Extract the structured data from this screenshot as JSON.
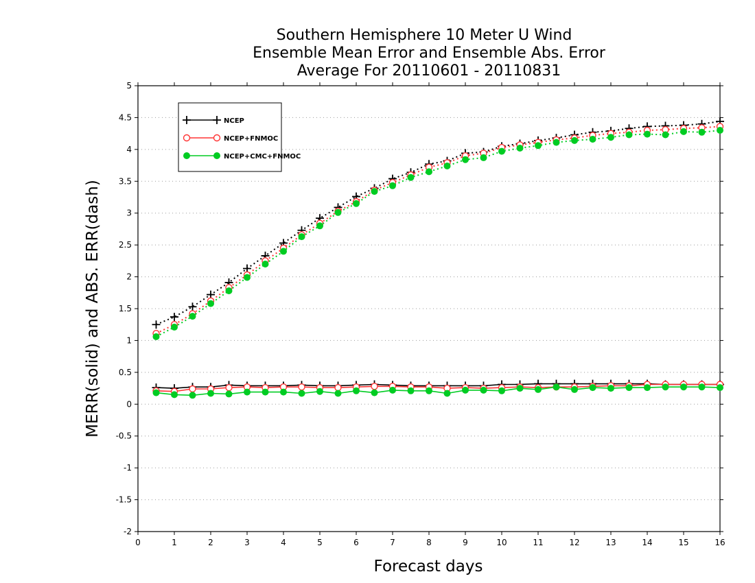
{
  "chart_data": {
    "type": "line",
    "title": [
      "Southern Hemisphere 10 Meter U Wind",
      "Ensemble Mean Error and Ensemble Abs. Error",
      "Average For 20110601 - 20110831"
    ],
    "xlabel": "Forecast days",
    "ylabel": "MERR(solid) and ABS. ERR(dash)",
    "xlim": [
      0,
      16
    ],
    "ylim": [
      -2,
      5
    ],
    "xticks": [
      0,
      1,
      2,
      3,
      4,
      5,
      6,
      7,
      8,
      9,
      10,
      11,
      12,
      13,
      14,
      15,
      16
    ],
    "yticks": [
      -2,
      -1.5,
      -1,
      -0.5,
      0,
      0.5,
      1,
      1.5,
      2,
      2.5,
      3,
      3.5,
      4,
      4.5,
      5
    ],
    "ytick_labels": [
      "-2",
      "-1.5",
      "-1",
      "-0.5",
      "0",
      "0.5",
      "1",
      "1.5",
      "2",
      "2.5",
      "3",
      "3.5",
      "4",
      "4.5",
      "5"
    ],
    "grid": "horizontal dotted",
    "legend_position": "top-left",
    "x": [
      0.5,
      1.0,
      1.5,
      2.0,
      2.5,
      3.0,
      3.5,
      4.0,
      4.5,
      5.0,
      5.5,
      6.0,
      6.5,
      7.0,
      7.5,
      8.0,
      8.5,
      9.0,
      9.5,
      10.0,
      10.5,
      11.0,
      11.5,
      12.0,
      12.5,
      13.0,
      13.5,
      14.0,
      14.5,
      15.0,
      15.5,
      16.0
    ],
    "series": [
      {
        "name": "NCEP",
        "color": "#000000",
        "marker": "plus",
        "merr": [
          0.26,
          0.25,
          0.27,
          0.27,
          0.3,
          0.29,
          0.29,
          0.29,
          0.3,
          0.29,
          0.29,
          0.3,
          0.31,
          0.3,
          0.29,
          0.29,
          0.29,
          0.29,
          0.29,
          0.31,
          0.31,
          0.32,
          0.32,
          0.32,
          0.32,
          0.32,
          0.32,
          0.32,
          0.31,
          0.31,
          0.31,
          0.31
        ],
        "abs_err": [
          1.25,
          1.37,
          1.53,
          1.72,
          1.91,
          2.13,
          2.33,
          2.53,
          2.73,
          2.92,
          3.09,
          3.26,
          3.39,
          3.54,
          3.64,
          3.77,
          3.82,
          3.94,
          3.96,
          4.05,
          4.09,
          4.14,
          4.18,
          4.23,
          4.27,
          4.29,
          4.33,
          4.36,
          4.37,
          4.38,
          4.4,
          4.44
        ]
      },
      {
        "name": "NCEP+FNMOC",
        "color": "#ff3333",
        "marker": "open-circle",
        "merr": [
          0.21,
          0.2,
          0.24,
          0.24,
          0.26,
          0.27,
          0.26,
          0.27,
          0.27,
          0.26,
          0.26,
          0.27,
          0.28,
          0.28,
          0.27,
          0.27,
          0.25,
          0.26,
          0.25,
          0.26,
          0.27,
          0.26,
          0.27,
          0.27,
          0.28,
          0.29,
          0.29,
          0.31,
          0.31,
          0.31,
          0.31,
          0.31
        ],
        "abs_err": [
          1.11,
          1.25,
          1.42,
          1.62,
          1.83,
          2.03,
          2.25,
          2.45,
          2.66,
          2.84,
          3.03,
          3.18,
          3.36,
          3.48,
          3.6,
          3.72,
          3.79,
          3.9,
          3.94,
          4.03,
          4.07,
          4.11,
          4.15,
          4.18,
          4.22,
          4.25,
          4.27,
          4.3,
          4.31,
          4.33,
          4.34,
          4.36
        ]
      },
      {
        "name": "NCEP+CMC+FNMOC",
        "color": "#00cc22",
        "marker": "filled-circle",
        "merr": [
          0.18,
          0.15,
          0.14,
          0.17,
          0.16,
          0.19,
          0.19,
          0.19,
          0.17,
          0.2,
          0.17,
          0.21,
          0.18,
          0.22,
          0.21,
          0.21,
          0.17,
          0.22,
          0.22,
          0.21,
          0.25,
          0.23,
          0.27,
          0.23,
          0.26,
          0.25,
          0.26,
          0.26,
          0.27,
          0.27,
          0.27,
          0.26
        ],
        "abs_err": [
          1.06,
          1.21,
          1.38,
          1.58,
          1.78,
          1.99,
          2.2,
          2.4,
          2.63,
          2.8,
          3.01,
          3.15,
          3.34,
          3.43,
          3.56,
          3.65,
          3.74,
          3.84,
          3.87,
          3.97,
          4.02,
          4.06,
          4.11,
          4.14,
          4.16,
          4.19,
          4.23,
          4.24,
          4.23,
          4.28,
          4.27,
          4.3
        ]
      }
    ]
  }
}
